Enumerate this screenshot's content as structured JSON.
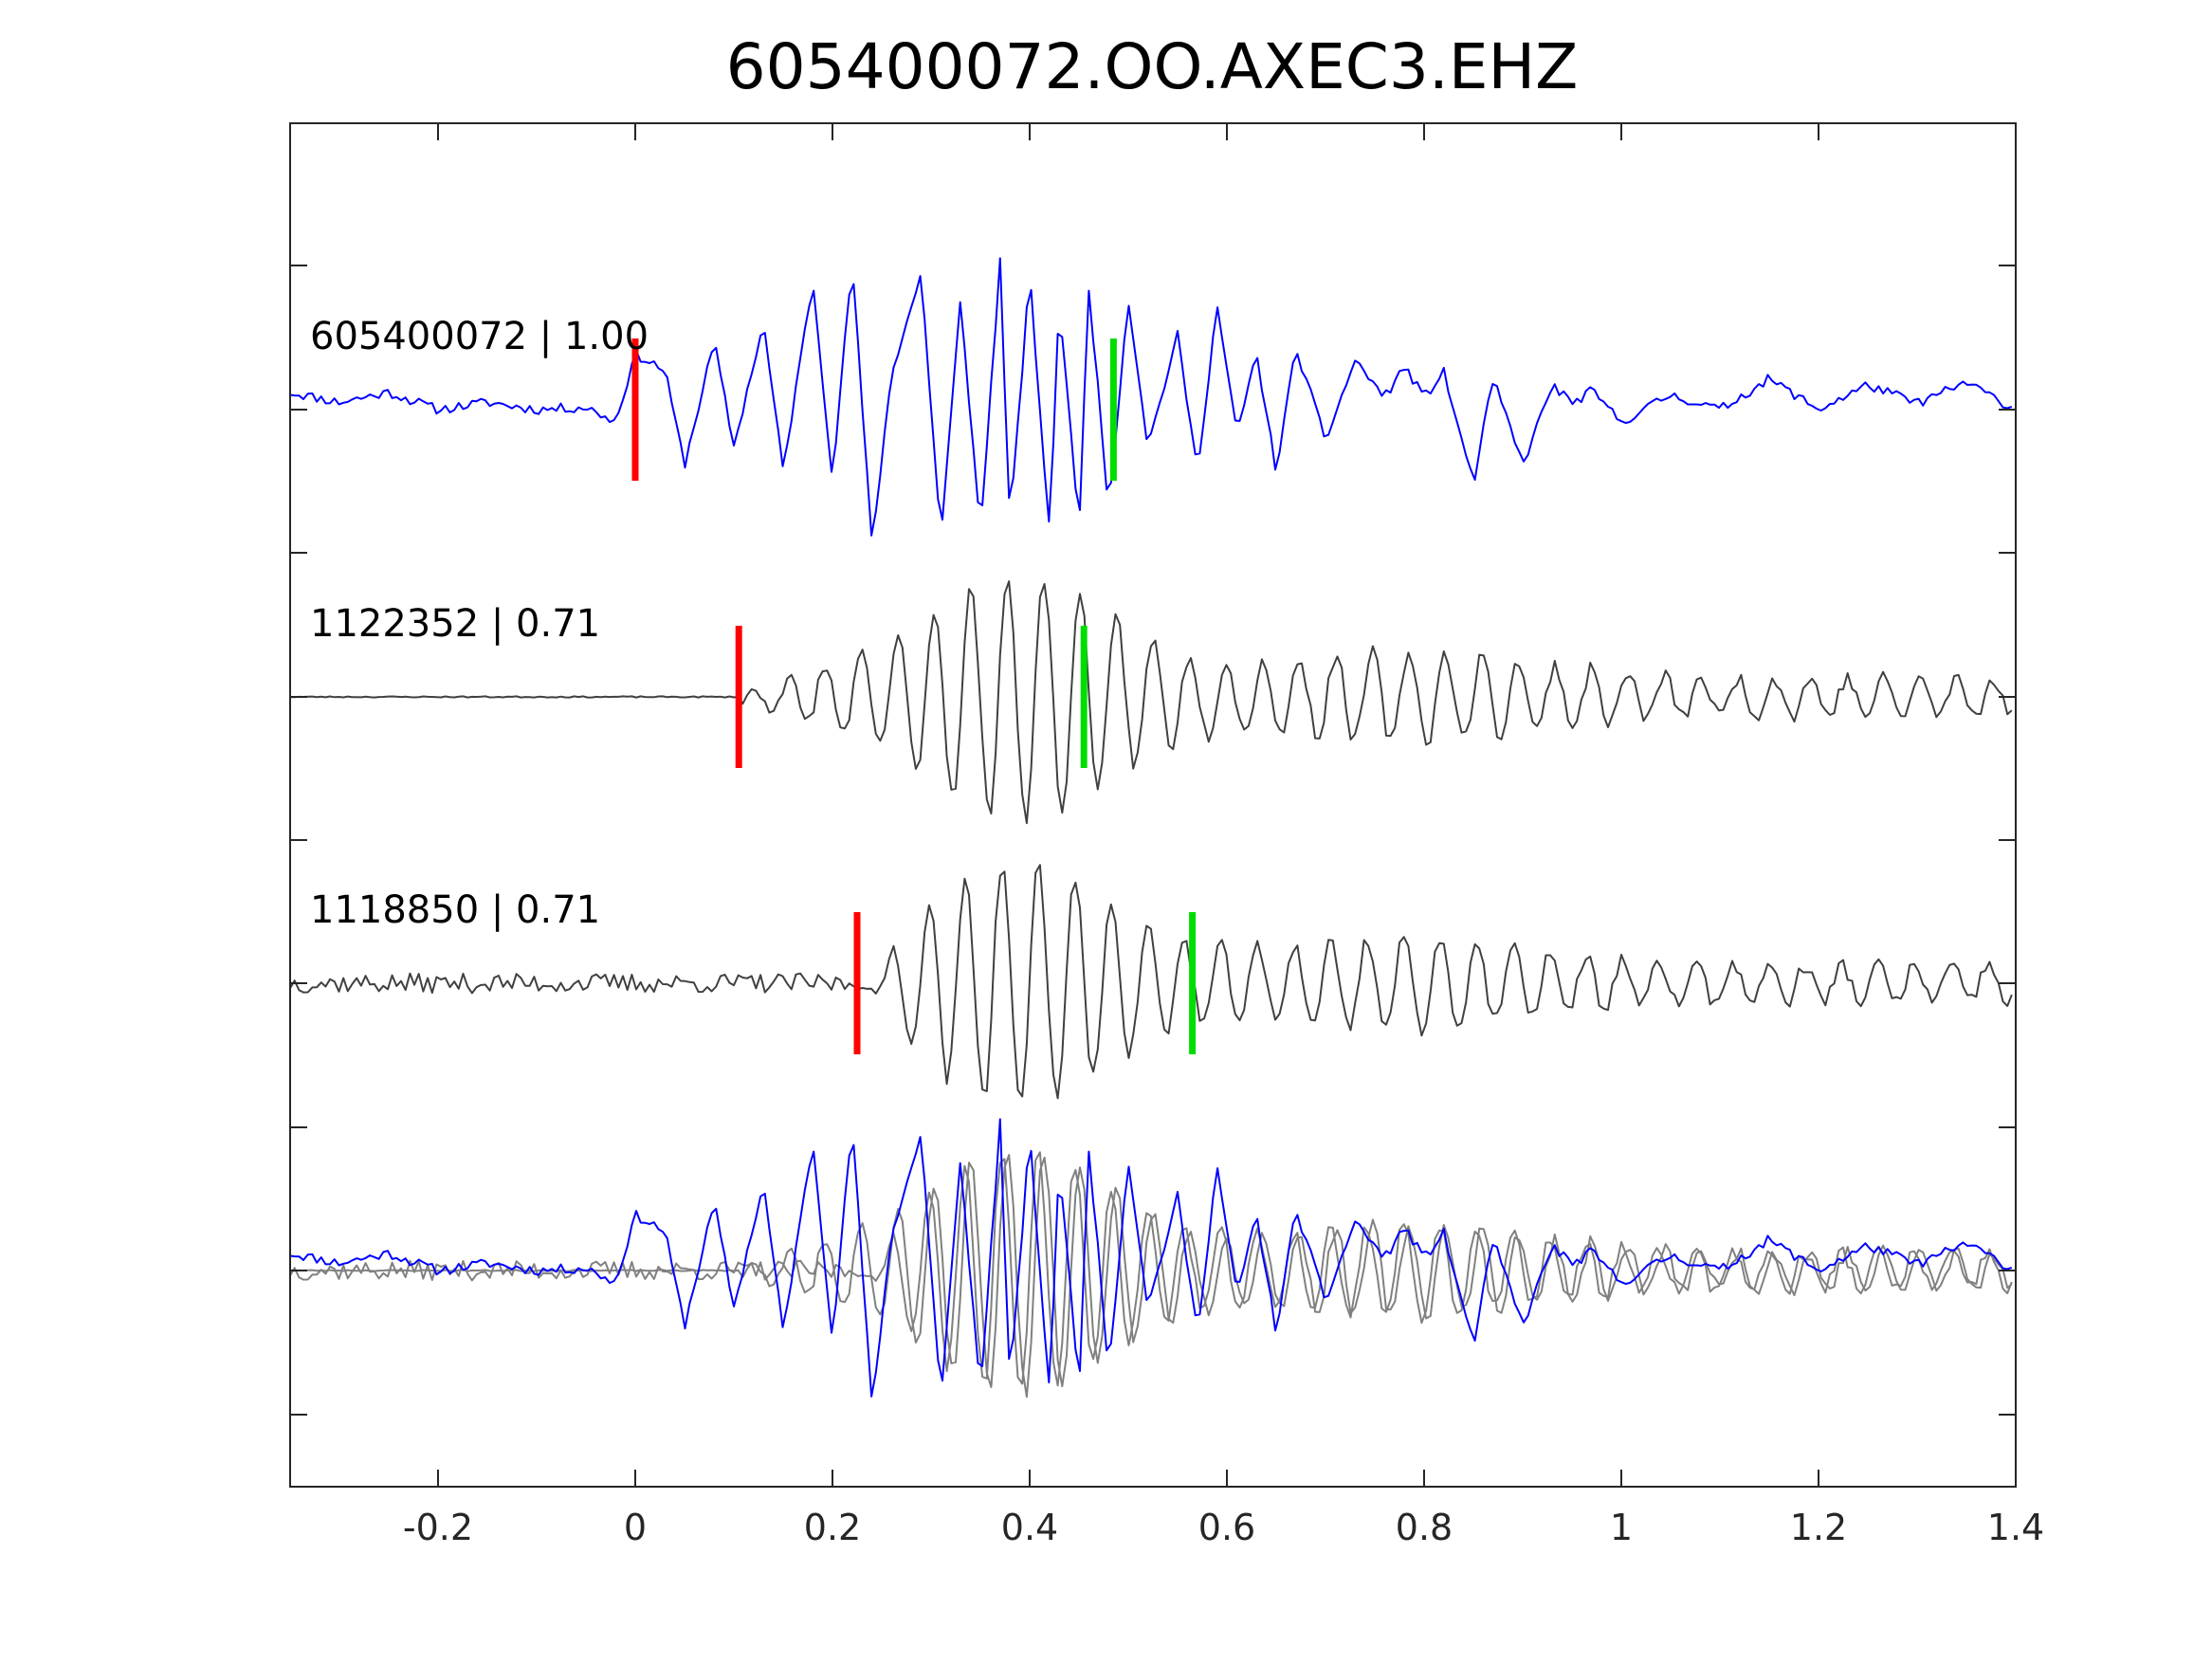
{
  "chart_data": {
    "type": "line",
    "title": "605400072.OO.AXEC3.EHZ",
    "xlabel": "",
    "ylabel": "",
    "xlim": [
      -0.35,
      1.4
    ],
    "x_ticks": [
      -0.2,
      0,
      0.2,
      0.4,
      0.6,
      0.8,
      1,
      1.2,
      1.4
    ],
    "x_tick_labels": [
      "-0.2",
      "0",
      "0.2",
      "0.4",
      "0.6",
      "0.8",
      "1",
      "1.2",
      "1.4"
    ],
    "grid": false,
    "colors": {
      "master": "#0000ff",
      "correlated": "#404040",
      "overlay_correlated": "#808080",
      "p_pick": "#ff0000",
      "s_pick": "#00dd00"
    },
    "series": [
      {
        "label": "605400072 | 1.00",
        "event_id": "605400072",
        "correlation": 1.0,
        "p_pick": 0.0,
        "s_pick": 0.485,
        "x": [
          -0.35,
          -0.3,
          -0.25,
          -0.2,
          -0.15,
          -0.1,
          -0.05,
          -0.02,
          0.0,
          0.03,
          0.05,
          0.08,
          0.1,
          0.13,
          0.15,
          0.18,
          0.2,
          0.22,
          0.24,
          0.26,
          0.29,
          0.31,
          0.33,
          0.35,
          0.37,
          0.38,
          0.4,
          0.42,
          0.43,
          0.45,
          0.46,
          0.48,
          0.5,
          0.52,
          0.55,
          0.57,
          0.59,
          0.61,
          0.63,
          0.65,
          0.67,
          0.7,
          0.73,
          0.76,
          0.78,
          0.8,
          0.82,
          0.85,
          0.87,
          0.9,
          0.93,
          0.95,
          0.97,
          1.0,
          1.05,
          1.1,
          1.15,
          1.2,
          1.25,
          1.3,
          1.35,
          1.4
        ],
        "y": [
          0.14,
          0.06,
          0.14,
          0.0,
          0.06,
          0.0,
          0.02,
          -0.1,
          0.45,
          0.32,
          -0.45,
          0.55,
          -0.3,
          0.7,
          -0.5,
          1.05,
          -0.55,
          1.2,
          -1.1,
          0.3,
          1.1,
          -1.05,
          0.9,
          -1.0,
          1.2,
          -0.95,
          1.1,
          -1.0,
          0.9,
          -0.98,
          1.0,
          -0.8,
          0.9,
          -0.3,
          0.6,
          -0.5,
          0.85,
          -0.2,
          0.45,
          -0.5,
          0.5,
          -0.25,
          0.4,
          0.1,
          0.35,
          0.1,
          0.3,
          -0.6,
          0.25,
          -0.45,
          0.2,
          0.05,
          0.15,
          -0.1,
          0.12,
          0.0,
          0.25,
          0.0,
          0.2,
          0.05,
          0.22,
          0.0
        ]
      },
      {
        "label": "1122352 | 0.71",
        "event_id": "1122352",
        "correlation": 0.71,
        "p_pick": 0.105,
        "s_pick": 0.455
      },
      {
        "label": "1118850 | 0.71",
        "event_id": "1118850",
        "correlation": 0.71,
        "p_pick": 0.225,
        "s_pick": 0.565
      }
    ]
  }
}
